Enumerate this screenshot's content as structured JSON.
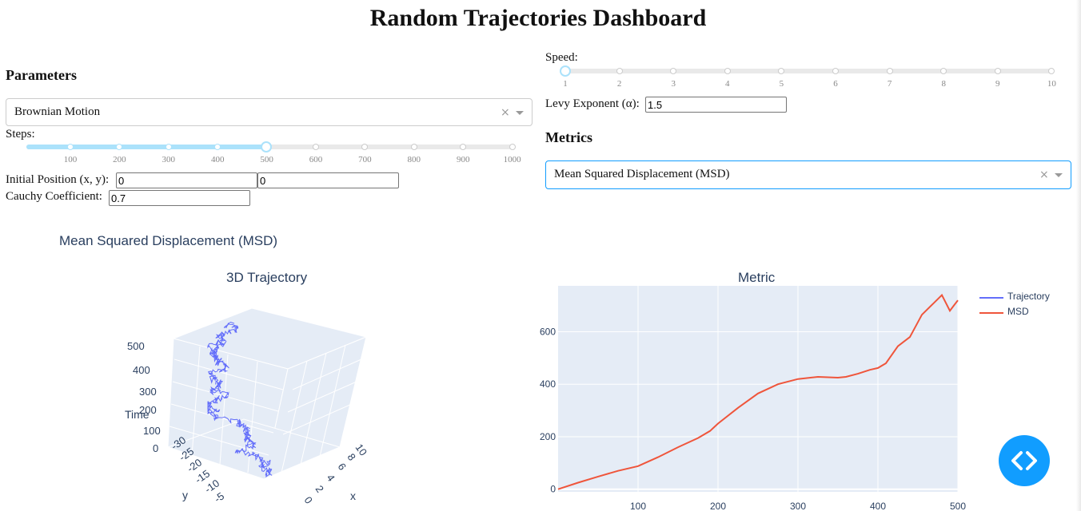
{
  "title": "Random Trajectories Dashboard",
  "parameters": {
    "heading": "Parameters",
    "model_dropdown": {
      "value": "Brownian Motion",
      "clear": "×"
    },
    "steps_label": "Steps:",
    "steps_marks": [
      "100",
      "200",
      "300",
      "400",
      "500",
      "600",
      "700",
      "800",
      "900",
      "1000"
    ],
    "steps_value": 500,
    "initial_position_label": "Initial Position (x, y):",
    "initial_x": "0",
    "initial_y": "0",
    "cauchy_label": "Cauchy Coefficient:",
    "cauchy_value": "0.7"
  },
  "speed": {
    "label": "Speed:",
    "marks": [
      "1",
      "2",
      "3",
      "4",
      "5",
      "6",
      "7",
      "8",
      "9",
      "10"
    ],
    "value": 1
  },
  "levy": {
    "label": "Levy Exponent (α):",
    "value": "1.5"
  },
  "metrics": {
    "heading": "Metrics",
    "dropdown": {
      "value": "Mean Squared Displacement (MSD)",
      "clear": "×"
    }
  },
  "graph_heading": "Mean Squared Displacement (MSD)",
  "colors": {
    "accent": "#119dff",
    "slider_track": "#abe2fb",
    "plot_bg": "#e5ecf6",
    "trajectory": "#636efa",
    "msd": "#ef553b",
    "plot_text": "#2a3f5f"
  },
  "chart_data": [
    {
      "type": "line",
      "title": "3D Trajectory",
      "axes": {
        "x": "x",
        "y": "y",
        "z": "Time"
      },
      "z_ticks": [
        "0",
        "100",
        "200",
        "300",
        "400",
        "500"
      ],
      "y_ticks": [
        "-30",
        "-25",
        "-20",
        "-15",
        "-10",
        "-5"
      ],
      "x_ticks": [
        "0",
        "2",
        "4",
        "6",
        "8",
        "10"
      ],
      "zlim": [
        0,
        500
      ]
    },
    {
      "type": "line",
      "title": "Metric",
      "x_ticks": [
        "100",
        "200",
        "300",
        "400",
        "500"
      ],
      "y_ticks": [
        "0",
        "200",
        "400",
        "600"
      ],
      "xlim": [
        0,
        500
      ],
      "ylim": [
        -10,
        775
      ],
      "legend": {
        "entries": [
          "Trajectory",
          "MSD"
        ],
        "placement": "top-right"
      },
      "series": [
        {
          "name": "MSD",
          "x": [
            0,
            25,
            50,
            75,
            100,
            125,
            150,
            175,
            190,
            200,
            225,
            250,
            275,
            300,
            325,
            350,
            360,
            375,
            390,
            400,
            410,
            425,
            440,
            455,
            470,
            480,
            490,
            495,
            500
          ],
          "y": [
            0,
            25,
            48,
            70,
            88,
            122,
            160,
            195,
            222,
            250,
            310,
            365,
            400,
            420,
            428,
            425,
            428,
            440,
            455,
            462,
            480,
            545,
            580,
            665,
            710,
            740,
            680,
            700,
            720
          ]
        }
      ]
    }
  ]
}
